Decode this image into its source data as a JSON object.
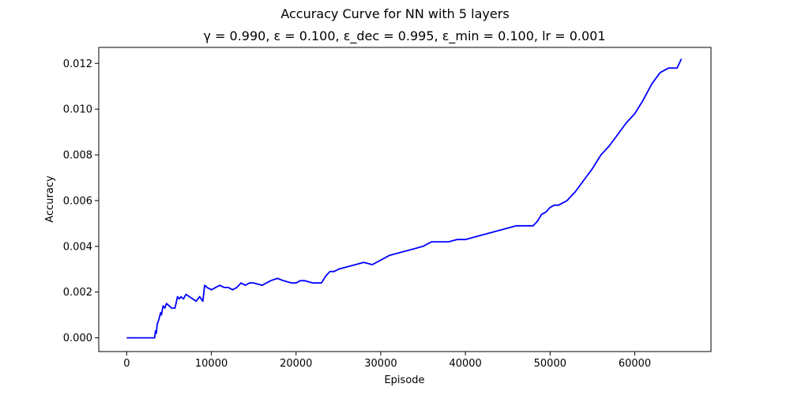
{
  "chart_data": {
    "type": "line",
    "title": "Accuracy Curve for NN with 5 layers",
    "subtitle": "γ = 0.990, ε = 0.100, ε_dec = 0.995, ε_min = 0.100, lr = 0.001",
    "xlabel": "Episode",
    "ylabel": "Accuracy",
    "xlim": [
      -3300,
      69000
    ],
    "ylim": [
      -0.0006,
      0.0127
    ],
    "xticks": [
      0,
      10000,
      20000,
      30000,
      40000,
      50000,
      60000
    ],
    "yticks": [
      0.0,
      0.002,
      0.004,
      0.006,
      0.008,
      0.01,
      0.012
    ],
    "xtick_labels": [
      "0",
      "10000",
      "20000",
      "30000",
      "40000",
      "50000",
      "60000"
    ],
    "ytick_labels": [
      "0.000",
      "0.002",
      "0.004",
      "0.006",
      "0.008",
      "0.010",
      "0.012"
    ],
    "grid": false,
    "series": [
      {
        "color": "#0000ff",
        "x": [
          0,
          3300,
          3400,
          3500,
          3600,
          3800,
          4000,
          4100,
          4300,
          4500,
          4700,
          5000,
          5300,
          5700,
          6000,
          6200,
          6400,
          6700,
          7000,
          7400,
          7800,
          8200,
          8600,
          9000,
          9200,
          9500,
          10000,
          10500,
          11000,
          11500,
          12000,
          12500,
          13000,
          13500,
          14000,
          14500,
          15000,
          16000,
          17000,
          17800,
          18500,
          19500,
          20000,
          20500,
          21000,
          22000,
          23000,
          23500,
          24000,
          24500,
          25000,
          26000,
          27000,
          28000,
          29000,
          30000,
          31000,
          32000,
          33000,
          34000,
          35000,
          36000,
          37000,
          38000,
          39000,
          40000,
          41000,
          42000,
          43000,
          44000,
          45000,
          46000,
          47000,
          48000,
          48500,
          49000,
          49500,
          50000,
          50500,
          51000,
          51500,
          52000,
          53000,
          54000,
          55000,
          56000,
          57000,
          58000,
          59000,
          60000,
          61000,
          62000,
          63000,
          64000,
          65000,
          65500
        ],
        "y": [
          0.0,
          0.0,
          0.0003,
          0.0002,
          0.0006,
          0.0008,
          0.0011,
          0.001,
          0.0014,
          0.0013,
          0.0015,
          0.0014,
          0.0013,
          0.0013,
          0.0018,
          0.0017,
          0.0018,
          0.0017,
          0.0019,
          0.0018,
          0.0017,
          0.0016,
          0.0018,
          0.0016,
          0.0023,
          0.0022,
          0.0021,
          0.0022,
          0.0023,
          0.0022,
          0.0022,
          0.0021,
          0.0022,
          0.0024,
          0.0023,
          0.0024,
          0.0024,
          0.0023,
          0.0025,
          0.0026,
          0.0025,
          0.0024,
          0.0024,
          0.0025,
          0.0025,
          0.0024,
          0.0024,
          0.0027,
          0.0029,
          0.0029,
          0.003,
          0.0031,
          0.0032,
          0.0033,
          0.0032,
          0.0034,
          0.0036,
          0.0037,
          0.0038,
          0.0039,
          0.004,
          0.0042,
          0.0042,
          0.0042,
          0.0043,
          0.0043,
          0.0044,
          0.0045,
          0.0046,
          0.0047,
          0.0048,
          0.0049,
          0.0049,
          0.0049,
          0.0051,
          0.0054,
          0.0055,
          0.0057,
          0.0058,
          0.0058,
          0.0059,
          0.006,
          0.0064,
          0.0069,
          0.0074,
          0.008,
          0.0084,
          0.0089,
          0.0094,
          0.0098,
          0.0104,
          0.0111,
          0.0116,
          0.0118,
          0.0118,
          0.0122
        ]
      }
    ]
  }
}
